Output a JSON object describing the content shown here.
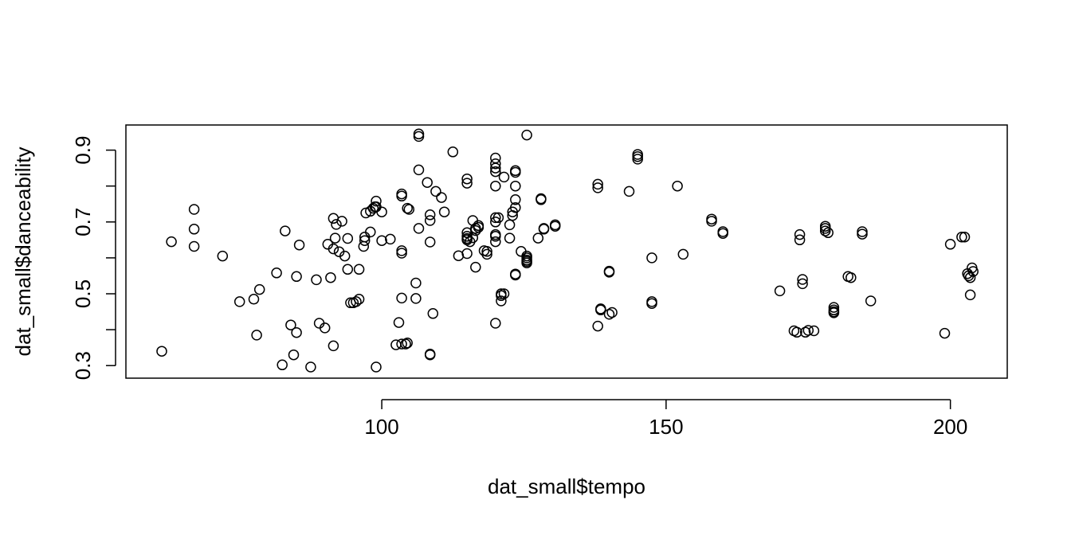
{
  "chart_data": {
    "type": "scatter",
    "title": "",
    "xlabel": "dat_small$tempo",
    "ylabel": "dat_small$danceability",
    "xlim": [
      55,
      210
    ],
    "ylim": [
      0.265,
      0.97
    ],
    "x_ticks": [
      100,
      150,
      200
    ],
    "x_tick_labels": [
      "100",
      "150",
      "200"
    ],
    "y_ticks": [
      0.3,
      0.4,
      0.5,
      0.6,
      0.7,
      0.8,
      0.9
    ],
    "y_tick_labels": [
      "0.3",
      "",
      "0.5",
      "",
      "0.7",
      "",
      "0.9"
    ],
    "grid": false,
    "marker": "open-circle",
    "points": [
      [
        61.3,
        0.34
      ],
      [
        63.0,
        0.645
      ],
      [
        67.0,
        0.735
      ],
      [
        67.0,
        0.68
      ],
      [
        67.0,
        0.632
      ],
      [
        72.0,
        0.605
      ],
      [
        75.0,
        0.478
      ],
      [
        77.5,
        0.485
      ],
      [
        78.0,
        0.385
      ],
      [
        78.5,
        0.512
      ],
      [
        81.5,
        0.558
      ],
      [
        82.5,
        0.302
      ],
      [
        83.0,
        0.675
      ],
      [
        84.0,
        0.413
      ],
      [
        84.5,
        0.33
      ],
      [
        85.0,
        0.392
      ],
      [
        85.0,
        0.548
      ],
      [
        85.5,
        0.636
      ],
      [
        87.5,
        0.296
      ],
      [
        88.5,
        0.539
      ],
      [
        89.0,
        0.418
      ],
      [
        90.0,
        0.405
      ],
      [
        90.5,
        0.638
      ],
      [
        91.0,
        0.545
      ],
      [
        91.5,
        0.625
      ],
      [
        91.5,
        0.71
      ],
      [
        91.8,
        0.655
      ],
      [
        92.0,
        0.693
      ],
      [
        91.5,
        0.355
      ],
      [
        92.5,
        0.617
      ],
      [
        93.0,
        0.702
      ],
      [
        93.5,
        0.605
      ],
      [
        94.0,
        0.568
      ],
      [
        94.0,
        0.654
      ],
      [
        94.5,
        0.475
      ],
      [
        95.0,
        0.475
      ],
      [
        95.5,
        0.478
      ],
      [
        96.0,
        0.485
      ],
      [
        96.0,
        0.568
      ],
      [
        96.8,
        0.632
      ],
      [
        97.0,
        0.648
      ],
      [
        97.0,
        0.658
      ],
      [
        97.2,
        0.725
      ],
      [
        98.0,
        0.672
      ],
      [
        98.0,
        0.73
      ],
      [
        98.5,
        0.738
      ],
      [
        98.8,
        0.742
      ],
      [
        99.0,
        0.758
      ],
      [
        99.0,
        0.742
      ],
      [
        99.0,
        0.296
      ],
      [
        100.0,
        0.728
      ],
      [
        100.0,
        0.648
      ],
      [
        101.5,
        0.652
      ],
      [
        102.5,
        0.358
      ],
      [
        103.0,
        0.42
      ],
      [
        103.5,
        0.488
      ],
      [
        103.5,
        0.36
      ],
      [
        103.5,
        0.62
      ],
      [
        103.5,
        0.613
      ],
      [
        103.5,
        0.778
      ],
      [
        103.5,
        0.772
      ],
      [
        104.2,
        0.36
      ],
      [
        104.5,
        0.363
      ],
      [
        104.5,
        0.738
      ],
      [
        104.8,
        0.735
      ],
      [
        106.0,
        0.53
      ],
      [
        106.0,
        0.487
      ],
      [
        106.5,
        0.682
      ],
      [
        106.5,
        0.845
      ],
      [
        106.5,
        0.945
      ],
      [
        106.5,
        0.938
      ],
      [
        108.0,
        0.81
      ],
      [
        108.5,
        0.72
      ],
      [
        108.5,
        0.704
      ],
      [
        108.5,
        0.644
      ],
      [
        108.5,
        0.332
      ],
      [
        108.5,
        0.33
      ],
      [
        109.0,
        0.445
      ],
      [
        109.5,
        0.785
      ],
      [
        110.5,
        0.768
      ],
      [
        111.0,
        0.728
      ],
      [
        112.5,
        0.895
      ],
      [
        113.5,
        0.606
      ],
      [
        115.0,
        0.82
      ],
      [
        115.0,
        0.808
      ],
      [
        115.0,
        0.612
      ],
      [
        115.0,
        0.67
      ],
      [
        115.0,
        0.66
      ],
      [
        115.0,
        0.654
      ],
      [
        115.0,
        0.65
      ],
      [
        115.5,
        0.645
      ],
      [
        116.0,
        0.704
      ],
      [
        116.0,
        0.656
      ],
      [
        116.5,
        0.574
      ],
      [
        116.5,
        0.682
      ],
      [
        116.5,
        0.676
      ],
      [
        117.0,
        0.69
      ],
      [
        117.0,
        0.685
      ],
      [
        118.0,
        0.62
      ],
      [
        118.5,
        0.618
      ],
      [
        118.5,
        0.61
      ],
      [
        120.0,
        0.878
      ],
      [
        120.0,
        0.862
      ],
      [
        120.0,
        0.85
      ],
      [
        120.0,
        0.84
      ],
      [
        120.0,
        0.8
      ],
      [
        120.0,
        0.712
      ],
      [
        120.0,
        0.7
      ],
      [
        120.0,
        0.665
      ],
      [
        120.0,
        0.66
      ],
      [
        120.0,
        0.645
      ],
      [
        120.0,
        0.418
      ],
      [
        120.5,
        0.712
      ],
      [
        121.0,
        0.5
      ],
      [
        121.0,
        0.495
      ],
      [
        121.0,
        0.48
      ],
      [
        121.5,
        0.5
      ],
      [
        121.5,
        0.825
      ],
      [
        122.5,
        0.692
      ],
      [
        122.5,
        0.655
      ],
      [
        123.0,
        0.728
      ],
      [
        123.0,
        0.718
      ],
      [
        123.5,
        0.843
      ],
      [
        123.5,
        0.838
      ],
      [
        123.5,
        0.8
      ],
      [
        123.5,
        0.762
      ],
      [
        123.5,
        0.74
      ],
      [
        123.5,
        0.555
      ],
      [
        123.5,
        0.552
      ],
      [
        124.5,
        0.618
      ],
      [
        125.5,
        0.605
      ],
      [
        125.5,
        0.6
      ],
      [
        125.5,
        0.594
      ],
      [
        125.5,
        0.59
      ],
      [
        125.5,
        0.586
      ],
      [
        125.5,
        0.942
      ],
      [
        127.5,
        0.655
      ],
      [
        128.0,
        0.762
      ],
      [
        128.0,
        0.765
      ],
      [
        128.5,
        0.68
      ],
      [
        128.5,
        0.682
      ],
      [
        130.5,
        0.688
      ],
      [
        130.5,
        0.692
      ],
      [
        138.0,
        0.805
      ],
      [
        138.0,
        0.795
      ],
      [
        138.0,
        0.41
      ],
      [
        138.5,
        0.458
      ],
      [
        138.5,
        0.455
      ],
      [
        140.0,
        0.443
      ],
      [
        140.0,
        0.563
      ],
      [
        140.0,
        0.56
      ],
      [
        140.5,
        0.448
      ],
      [
        143.5,
        0.785
      ],
      [
        145.0,
        0.888
      ],
      [
        145.0,
        0.882
      ],
      [
        145.0,
        0.875
      ],
      [
        147.5,
        0.6
      ],
      [
        147.5,
        0.478
      ],
      [
        147.5,
        0.473
      ],
      [
        152.0,
        0.8
      ],
      [
        153.0,
        0.61
      ],
      [
        158.0,
        0.708
      ],
      [
        158.0,
        0.702
      ],
      [
        160.0,
        0.673
      ],
      [
        160.0,
        0.668
      ],
      [
        170.0,
        0.508
      ],
      [
        172.5,
        0.397
      ],
      [
        173.0,
        0.393
      ],
      [
        173.5,
        0.65
      ],
      [
        173.5,
        0.665
      ],
      [
        174.0,
        0.54
      ],
      [
        174.0,
        0.528
      ],
      [
        174.5,
        0.393
      ],
      [
        175.0,
        0.398
      ],
      [
        176.0,
        0.397
      ],
      [
        178.0,
        0.688
      ],
      [
        178.0,
        0.682
      ],
      [
        178.0,
        0.675
      ],
      [
        178.5,
        0.67
      ],
      [
        179.5,
        0.462
      ],
      [
        179.5,
        0.455
      ],
      [
        179.5,
        0.45
      ],
      [
        179.5,
        0.447
      ],
      [
        182.0,
        0.548
      ],
      [
        182.5,
        0.545
      ],
      [
        184.5,
        0.673
      ],
      [
        184.5,
        0.666
      ],
      [
        186.0,
        0.48
      ],
      [
        199.0,
        0.39
      ],
      [
        200.0,
        0.638
      ],
      [
        202.0,
        0.658
      ],
      [
        202.5,
        0.658
      ],
      [
        203.0,
        0.556
      ],
      [
        203.2,
        0.55
      ],
      [
        203.5,
        0.545
      ],
      [
        203.5,
        0.497
      ],
      [
        203.8,
        0.572
      ],
      [
        204.0,
        0.562
      ]
    ]
  }
}
